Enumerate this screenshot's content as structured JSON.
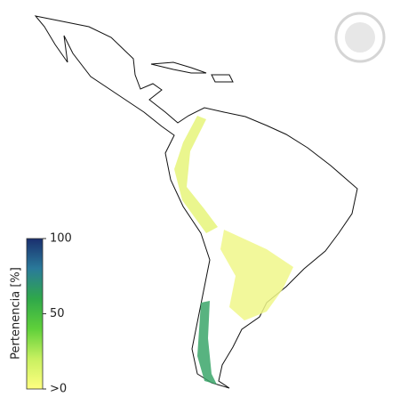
{
  "legend": {
    "title": "Pertenencia [%]",
    "ticks": [
      {
        "value": 100,
        "label": "100"
      },
      {
        "value": 50,
        "label": "50"
      },
      {
        "value": 0,
        "label": ">0"
      }
    ],
    "range": [
      0,
      100
    ],
    "colormap": [
      "#ffff80",
      "#c8f060",
      "#5fd03a",
      "#2fa84a",
      "#2a7a9a",
      "#1a2f6e"
    ]
  }
}
